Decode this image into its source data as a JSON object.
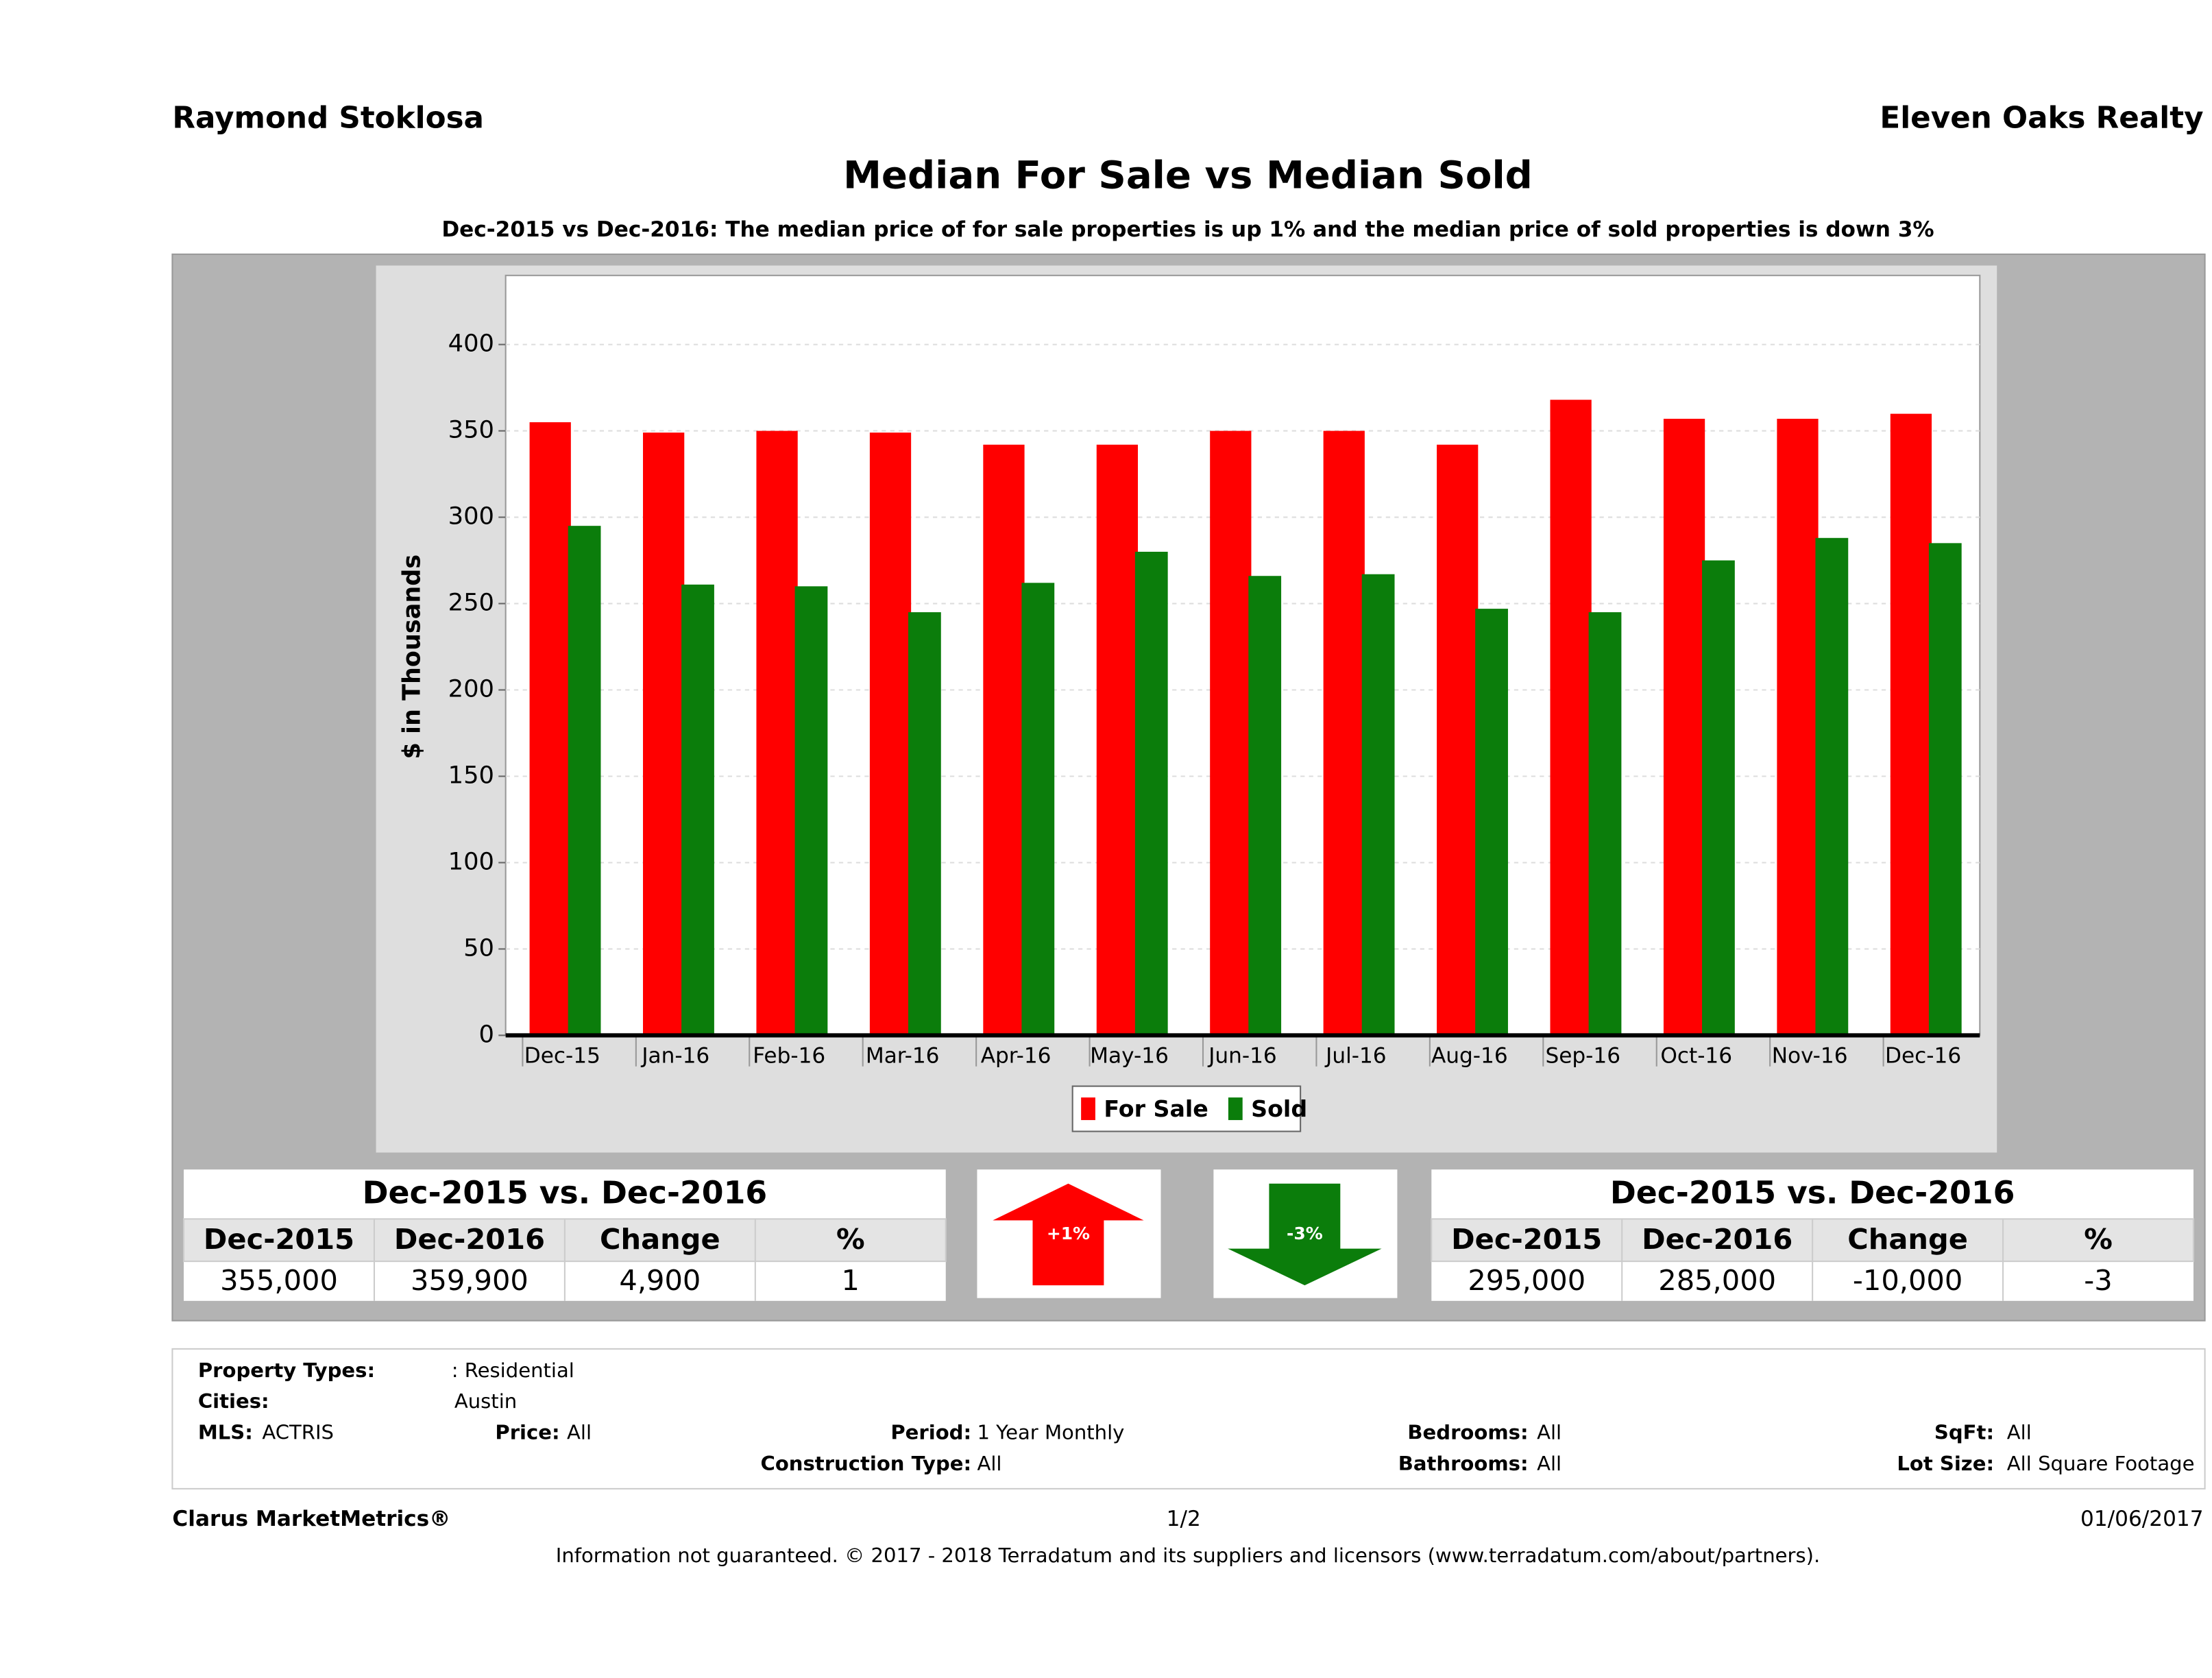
{
  "header": {
    "agent": "Raymond Stoklosa",
    "company": "Eleven Oaks Realty"
  },
  "chart_data": {
    "type": "bar",
    "title": "Median For Sale vs Median Sold",
    "subtitle": "Dec-2015 vs Dec-2016: The median price of for sale properties is up 1% and the median price of sold properties is down 3%",
    "y_label": "$ in Thousands",
    "categories": [
      "Dec-15",
      "Jan-16",
      "Feb-16",
      "Mar-16",
      "Apr-16",
      "May-16",
      "Jun-16",
      "Jul-16",
      "Aug-16",
      "Sep-16",
      "Oct-16",
      "Nov-16",
      "Dec-16"
    ],
    "series": [
      {
        "name": "For Sale",
        "color": "#ff0000",
        "values": [
          355,
          349,
          350,
          349,
          342,
          342,
          350,
          350,
          342,
          368,
          357,
          357,
          359.9
        ]
      },
      {
        "name": "Sold",
        "color": "#0b7d0b",
        "values": [
          295,
          261,
          260,
          245,
          262,
          280,
          266,
          267,
          247,
          245,
          275,
          288,
          285
        ]
      }
    ],
    "ylim": [
      0,
      440
    ],
    "yticks": [
      0,
      50,
      100,
      150,
      200,
      250,
      300,
      350,
      400
    ],
    "grid": true
  },
  "tables": [
    {
      "title": "Dec-2015 vs. Dec-2016",
      "headers": [
        "Dec-2015",
        "Dec-2016",
        "Change",
        "%"
      ],
      "row": [
        "355,000",
        "359,900",
        "4,900",
        "1"
      ],
      "badge": "+1%"
    },
    {
      "title": "Dec-2015 vs. Dec-2016",
      "headers": [
        "Dec-2015",
        "Dec-2016",
        "Change",
        "%"
      ],
      "row": [
        "295,000",
        "285,000",
        "-10,000",
        "-3"
      ],
      "badge": "-3%"
    }
  ],
  "filters": [
    {
      "label": "Property Types:",
      "value": ": Residential"
    },
    {
      "label": "Cities:",
      "value": "Austin"
    },
    {
      "label": "MLS:",
      "value": "ACTRIS"
    },
    {
      "label": "Price:",
      "value": "All"
    },
    {
      "label": "Period:",
      "value": "1 Year Monthly"
    },
    {
      "label": "Bedrooms:",
      "value": "All"
    },
    {
      "label": "SqFt:",
      "value": "All"
    },
    {
      "label": "Construction Type:",
      "value": "All"
    },
    {
      "label": "Bathrooms:",
      "value": "All"
    },
    {
      "label": "Lot Size:",
      "value": "All Square Footage"
    }
  ],
  "footer": {
    "brand": "Clarus MarketMetrics®",
    "page": "1/2",
    "date": "01/06/2017",
    "disclaimer": "Information not guaranteed. © 2017 - 2018 Terradatum and its suppliers and licensors (www.terradatum.com/about/partners)."
  }
}
